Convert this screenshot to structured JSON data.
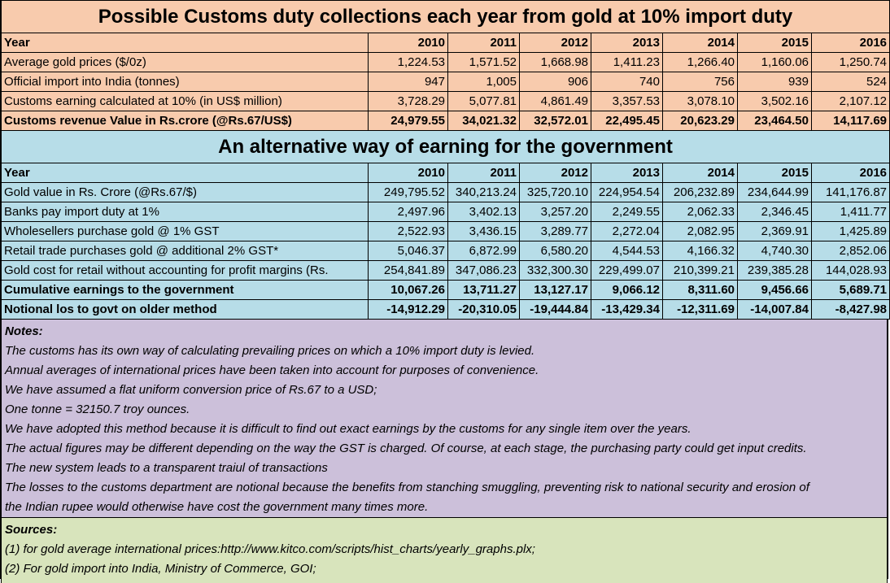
{
  "table1": {
    "title": "Possible Customs duty collections each year from gold at 10% import duty",
    "header": {
      "label": "Year",
      "years": [
        "2010",
        "2011",
        "2012",
        "2013",
        "2014",
        "2015",
        "2016"
      ]
    },
    "rows": [
      {
        "label": "Average gold prices ($/0z)",
        "values": [
          "1,224.53",
          "1,571.52",
          "1,668.98",
          "1,411.23",
          "1,266.40",
          "1,160.06",
          "1,250.74"
        ]
      },
      {
        "label": "Official import into India (tonnes)",
        "values": [
          "947",
          "1,005",
          "906",
          "740",
          "756",
          "939",
          "524"
        ]
      },
      {
        "label": "Customs earning calculated at 10% (in US$ million)",
        "values": [
          "3,728.29",
          "5,077.81",
          "4,861.49",
          "3,357.53",
          "3,078.10",
          "3,502.16",
          "2,107.12"
        ]
      },
      {
        "label": "Customs revenue Value in Rs.crore (@Rs.67/US$)",
        "values": [
          "24,979.55",
          "34,021.32",
          "32,572.01",
          "22,495.45",
          "20,623.29",
          "23,464.50",
          "14,117.69"
        ]
      }
    ]
  },
  "table2": {
    "title": "An alternative way of earning for the government",
    "header": {
      "label": "Year",
      "years": [
        "2010",
        "2011",
        "2012",
        "2013",
        "2014",
        "2015",
        "2016"
      ]
    },
    "rows": [
      {
        "label": "Gold value in Rs. Crore (@Rs.67/$)",
        "values": [
          "249,795.52",
          "340,213.24",
          "325,720.10",
          "224,954.54",
          "206,232.89",
          "234,644.99",
          "141,176.87"
        ]
      },
      {
        "label": "Banks pay import duty at 1%",
        "values": [
          "2,497.96",
          "3,402.13",
          "3,257.20",
          "2,249.55",
          "2,062.33",
          "2,346.45",
          "1,411.77"
        ]
      },
      {
        "label": "Wholesellers purchase gold @ 1% GST",
        "values": [
          "2,522.93",
          "3,436.15",
          "3,289.77",
          "2,272.04",
          "2,082.95",
          "2,369.91",
          "1,425.89"
        ]
      },
      {
        "label": "Retail trade purchases gold @ additional 2% GST*",
        "values": [
          "5,046.37",
          "6,872.99",
          "6,580.20",
          "4,544.53",
          "4,166.32",
          "4,740.30",
          "2,852.06"
        ]
      },
      {
        "label": "Gold cost for retail without accounting for profit margins (Rs.",
        "values": [
          "254,841.89",
          "347,086.23",
          "332,300.30",
          "229,499.07",
          "210,399.21",
          "239,385.28",
          "144,028.93"
        ]
      },
      {
        "label": "Cumulative earnings to the government",
        "values": [
          "10,067.26",
          "13,711.27",
          "13,127.17",
          "9,066.12",
          "8,311.60",
          "9,456.66",
          "5,689.71"
        ]
      },
      {
        "label": "Notional los to govt on older method",
        "values": [
          "-14,912.29",
          "-20,310.05",
          "-19,444.84",
          "-13,429.34",
          "-12,311.69",
          "-14,007.84",
          "-8,427.98"
        ]
      }
    ]
  },
  "notes": {
    "heading": "Notes:",
    "lines": [
      "The customs has its own way of calculating prevailing prices on which a 10% import duty is levied.",
      "Annual averages of international prices have been taken into account for purposes of convenience.",
      "We have assumed a flat uniform conversion price of Rs.67 to a USD;",
      "One tonne = 32150.7 troy ounces.",
      "We have adopted this method because it is difficult to find out exact earnings by the customs for any single item over the years.",
      "The actual figures may be different depending on the way the GST is charged.  Of course, at each stage, the purchasing party could get input credits.",
      "The new system leads to a transparent traiul of transactions",
      "The losses to the customs department are notional because the benefits from stanching smuggling, preventing risk to national security and erosion of",
      "the Indian rupee would otherwise have cost the government many times more."
    ]
  },
  "sources": {
    "heading": "Sources:",
    "lines": [
      "(1) for gold average international prices:http://www.kitco.com/scripts/hist_charts/yearly_graphs.plx;",
      "(2) For gold import into India, Ministry of Commerce, GOI;"
    ]
  },
  "colors": {
    "peach": "#f8cbad",
    "blue": "#b7dde8",
    "lavender": "#ccc0da",
    "green": "#d8e4bc"
  }
}
